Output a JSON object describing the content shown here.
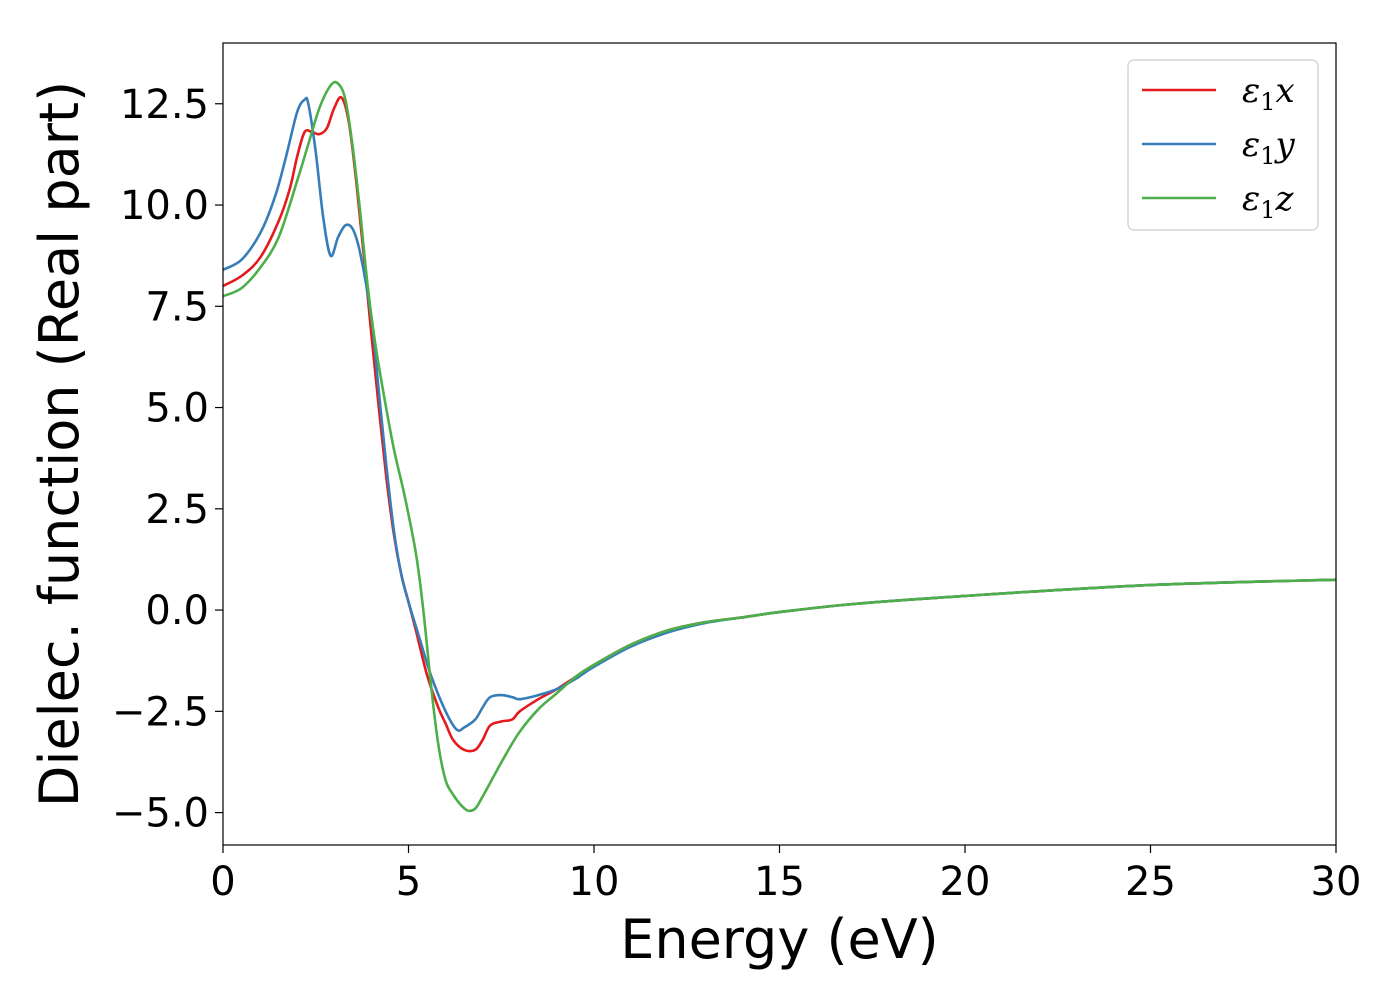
{
  "chart_data": {
    "type": "line",
    "title": "",
    "xlabel": "Energy (eV)",
    "ylabel": "Dielec. function (Real part)",
    "xlim": [
      0,
      30
    ],
    "ylim": [
      -5.8,
      14
    ],
    "xticks": [
      0,
      5,
      10,
      15,
      20,
      25,
      30
    ],
    "xtick_labels": [
      "0",
      "5",
      "10",
      "15",
      "20",
      "25",
      "30"
    ],
    "yticks": [
      -5.0,
      -2.5,
      0.0,
      2.5,
      5.0,
      7.5,
      10.0,
      12.5
    ],
    "ytick_labels": [
      "−5.0",
      "−2.5",
      "0.0",
      "2.5",
      "5.0",
      "7.5",
      "10.0",
      "12.5"
    ],
    "grid": false,
    "legend_position": "top-right",
    "series": [
      {
        "name": "ε1x",
        "name_base": "ε",
        "name_sub": "1",
        "name_tail": "x",
        "color": "#e41a1c",
        "x": [
          0,
          0.5,
          1.0,
          1.5,
          1.8,
          2.0,
          2.2,
          2.4,
          2.6,
          2.8,
          3.0,
          3.2,
          3.4,
          3.6,
          3.8,
          4.0,
          4.2,
          4.4,
          4.6,
          4.8,
          5.0,
          5.2,
          5.5,
          5.8,
          6.0,
          6.2,
          6.5,
          6.8,
          7.0,
          7.2,
          7.5,
          7.8,
          8.0,
          8.5,
          9.0,
          9.5,
          10,
          11,
          12,
          13,
          14,
          15,
          17,
          20,
          25,
          30
        ],
        "y": [
          8.0,
          8.25,
          8.7,
          9.6,
          10.4,
          11.2,
          11.8,
          11.8,
          11.75,
          11.9,
          12.4,
          12.65,
          12.0,
          10.5,
          8.7,
          6.8,
          5.0,
          3.3,
          1.9,
          0.9,
          0.2,
          -0.5,
          -1.6,
          -2.4,
          -2.8,
          -3.2,
          -3.45,
          -3.45,
          -3.2,
          -2.85,
          -2.75,
          -2.7,
          -2.5,
          -2.2,
          -1.95,
          -1.65,
          -1.35,
          -0.85,
          -0.5,
          -0.3,
          -0.18,
          -0.05,
          0.15,
          0.35,
          0.62,
          0.75
        ]
      },
      {
        "name": "ε1y",
        "name_base": "ε",
        "name_sub": "1",
        "name_tail": "y",
        "color": "#377eb8",
        "x": [
          0,
          0.5,
          1.0,
          1.4,
          1.7,
          2.0,
          2.2,
          2.3,
          2.5,
          2.7,
          2.9,
          3.1,
          3.3,
          3.5,
          3.7,
          4.0,
          4.2,
          4.4,
          4.6,
          4.8,
          5.0,
          5.3,
          5.6,
          6.0,
          6.3,
          6.5,
          6.8,
          7.0,
          7.2,
          7.5,
          7.8,
          8.0,
          8.5,
          9.0,
          9.5,
          10,
          11,
          12,
          13,
          14,
          15,
          17,
          20,
          25,
          30
        ],
        "y": [
          8.4,
          8.65,
          9.3,
          10.2,
          11.2,
          12.3,
          12.6,
          12.5,
          11.3,
          9.7,
          8.75,
          9.2,
          9.5,
          9.4,
          8.8,
          7.2,
          5.4,
          3.6,
          2.0,
          0.9,
          0.2,
          -0.7,
          -1.6,
          -2.5,
          -2.95,
          -2.9,
          -2.7,
          -2.4,
          -2.15,
          -2.1,
          -2.15,
          -2.2,
          -2.1,
          -1.95,
          -1.7,
          -1.4,
          -0.9,
          -0.55,
          -0.32,
          -0.18,
          -0.05,
          0.15,
          0.35,
          0.62,
          0.75
        ]
      },
      {
        "name": "ε1z",
        "name_base": "ε",
        "name_sub": "1",
        "name_tail": "z",
        "color": "#4daf4a",
        "x": [
          0,
          0.5,
          1.0,
          1.5,
          2.0,
          2.3,
          2.6,
          2.9,
          3.1,
          3.3,
          3.5,
          3.7,
          3.9,
          4.1,
          4.3,
          4.6,
          4.9,
          5.2,
          5.4,
          5.6,
          5.8,
          6.0,
          6.2,
          6.4,
          6.6,
          6.8,
          7.0,
          7.3,
          7.6,
          8.0,
          8.5,
          9.0,
          9.5,
          10,
          11,
          12,
          13,
          14,
          15,
          17,
          20,
          25,
          30
        ],
        "y": [
          7.75,
          7.95,
          8.45,
          9.2,
          10.6,
          11.5,
          12.4,
          12.95,
          13.0,
          12.6,
          11.4,
          9.8,
          8.0,
          6.6,
          5.5,
          4.0,
          2.8,
          1.4,
          0.0,
          -1.8,
          -3.3,
          -4.2,
          -4.55,
          -4.8,
          -4.95,
          -4.9,
          -4.6,
          -4.1,
          -3.6,
          -3.0,
          -2.45,
          -2.05,
          -1.65,
          -1.35,
          -0.85,
          -0.5,
          -0.3,
          -0.18,
          -0.05,
          0.15,
          0.35,
          0.62,
          0.75
        ]
      }
    ]
  }
}
